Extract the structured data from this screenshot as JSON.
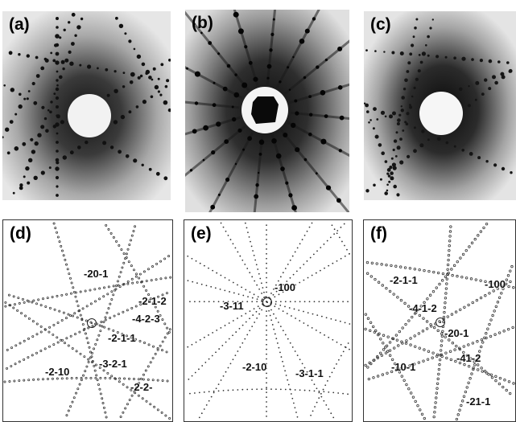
{
  "figure": {
    "panels": [
      {
        "label": "(a)",
        "kind": "laue-photo"
      },
      {
        "label": "(b)",
        "kind": "laue-photo"
      },
      {
        "label": "(c)",
        "kind": "laue-photo"
      },
      {
        "label": "(d)",
        "kind": "laue-simulation",
        "indices": [
          "-20-1",
          "-2-1-2",
          "-4-2-3",
          "-2-1-1",
          "-3-2-1",
          "-2-10",
          "-2-2-"
        ]
      },
      {
        "label": "(e)",
        "kind": "laue-simulation",
        "indices": [
          "-100",
          "-3-11",
          "-2-10",
          "-3-1-1"
        ]
      },
      {
        "label": "(f)",
        "kind": "laue-simulation",
        "indices": [
          "-2-1-1",
          "-100",
          "-4-1-2",
          "-20-1",
          "-41-2",
          "-10-1",
          "-21-1"
        ]
      }
    ]
  }
}
